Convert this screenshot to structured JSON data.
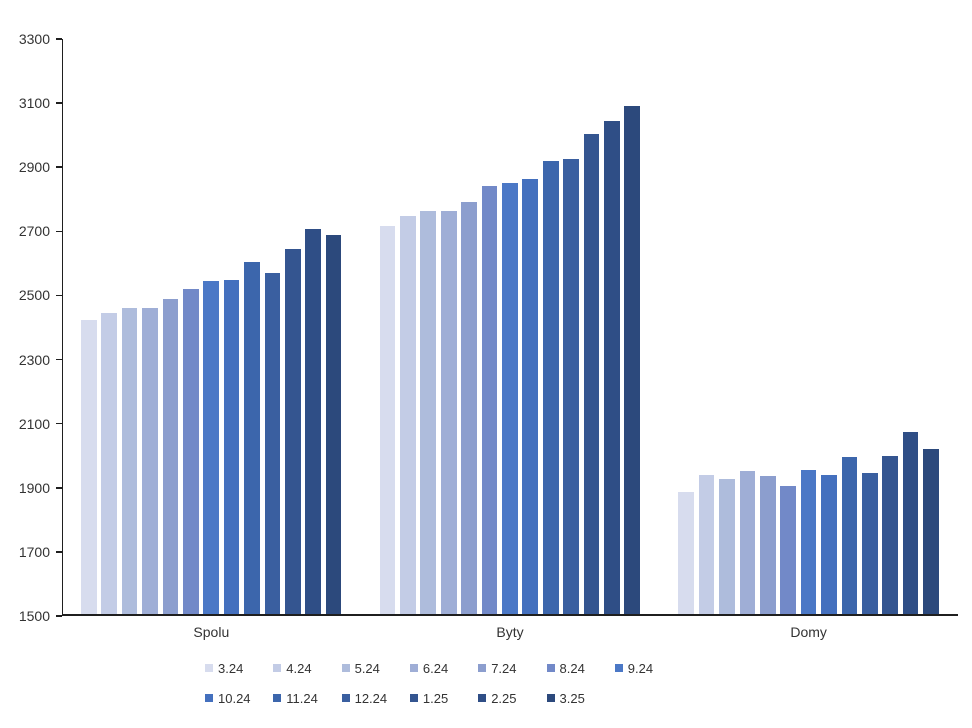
{
  "chart_data": {
    "type": "bar",
    "title": "",
    "categories": [
      "Spolu",
      "Byty",
      "Domy"
    ],
    "series": [
      {
        "name": "3.24",
        "color": "#D7DCEE",
        "values": [
          2424,
          2716,
          1887
        ]
      },
      {
        "name": "4.24",
        "color": "#C3CCE6",
        "values": [
          2444,
          2747,
          1941
        ]
      },
      {
        "name": "5.24",
        "color": "#AEBCDC",
        "values": [
          2460,
          2763,
          1928
        ]
      },
      {
        "name": "6.24",
        "color": "#9FAED6",
        "values": [
          2462,
          2763,
          1953
        ]
      },
      {
        "name": "7.24",
        "color": "#8C9ECE",
        "values": [
          2490,
          2791,
          1938
        ]
      },
      {
        "name": "8.24",
        "color": "#7289C8",
        "values": [
          2519,
          2841,
          1906
        ]
      },
      {
        "name": "9.24",
        "color": "#4B78C6",
        "values": [
          2545,
          2850,
          1956
        ]
      },
      {
        "name": "10.24",
        "color": "#4470BE",
        "values": [
          2549,
          2863,
          1940
        ]
      },
      {
        "name": "11.24",
        "color": "#3C66AC",
        "values": [
          2604,
          2918,
          1997
        ]
      },
      {
        "name": "12.24",
        "color": "#3A5FA0",
        "values": [
          2570,
          2925,
          1947
        ]
      },
      {
        "name": "1.25",
        "color": "#345590",
        "values": [
          2646,
          3005,
          2000
        ]
      },
      {
        "name": "2.25",
        "color": "#2F4E86",
        "values": [
          2706,
          3045,
          2075
        ]
      },
      {
        "name": "3.25",
        "color": "#2C497C",
        "values": [
          2690,
          3092,
          2021
        ]
      }
    ],
    "y_axis": {
      "min": 1500,
      "max": 3300,
      "step": 200,
      "tick_labels": [
        "3300",
        "3100",
        "2900",
        "2700",
        "2500",
        "2300",
        "2100",
        "1900",
        "1700",
        "1500"
      ]
    },
    "legend": {
      "position": "bottom",
      "rows": [
        [
          "3.24",
          "4.24",
          "5.24",
          "6.24",
          "7.24",
          "8.24",
          "9.24"
        ],
        [
          "10.24",
          "11.24",
          "12.24",
          "1.25",
          "2.25",
          "3.25"
        ]
      ]
    },
    "grid": "off"
  },
  "colors": {
    "background": "#ffffff",
    "axis_line": "#1f1f1f",
    "label_text": "#333333"
  }
}
